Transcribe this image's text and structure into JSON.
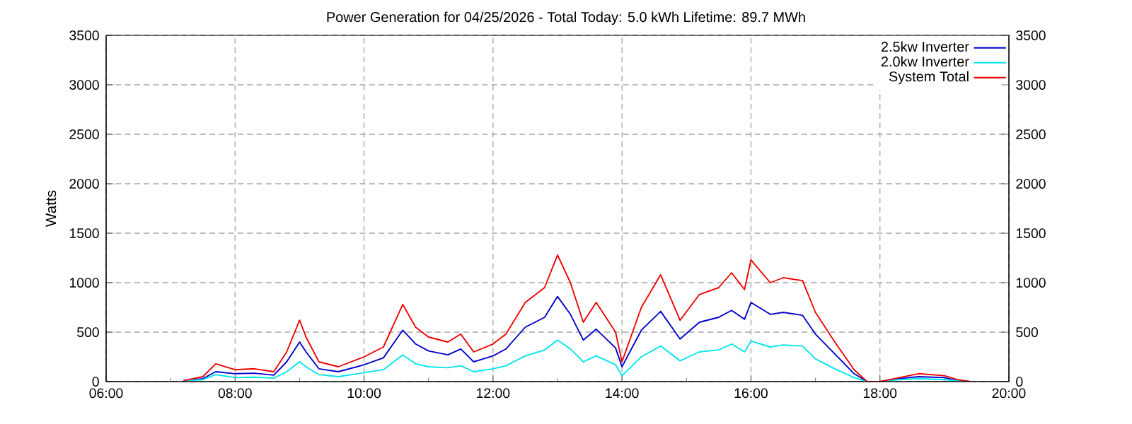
{
  "chart_data": {
    "type": "line",
    "title": "Power Generation for 04/25/2026 - Total Today: 5.0 kWh   Lifetime: 89.7 MWh",
    "ylabel": "Watts",
    "x": [
      7.2,
      7.5,
      7.7,
      8.0,
      8.3,
      8.6,
      8.8,
      9.0,
      9.1,
      9.3,
      9.6,
      10.0,
      10.3,
      10.6,
      10.8,
      11.0,
      11.3,
      11.5,
      11.7,
      12.0,
      12.2,
      12.5,
      12.8,
      13.0,
      13.2,
      13.4,
      13.6,
      13.9,
      14.0,
      14.3,
      14.6,
      14.9,
      15.2,
      15.5,
      15.7,
      15.9,
      16.0,
      16.3,
      16.5,
      16.8,
      17.0,
      17.3,
      17.6,
      17.8,
      18.0,
      18.3,
      18.6,
      19.0,
      19.2,
      19.4
    ],
    "series": [
      {
        "name": "2.5kw Inverter",
        "color": "#0000cc",
        "values": [
          10,
          30,
          100,
          80,
          85,
          65,
          200,
          400,
          300,
          130,
          100,
          170,
          240,
          520,
          380,
          310,
          270,
          330,
          200,
          260,
          330,
          550,
          650,
          860,
          680,
          420,
          530,
          340,
          150,
          520,
          710,
          430,
          600,
          650,
          720,
          630,
          800,
          680,
          700,
          670,
          480,
          280,
          80,
          0,
          0,
          30,
          50,
          40,
          10,
          0
        ]
      },
      {
        "name": "2.0kw Inverter",
        "color": "#00e5ee",
        "values": [
          10,
          20,
          70,
          40,
          45,
          35,
          100,
          200,
          150,
          70,
          50,
          90,
          120,
          270,
          180,
          150,
          140,
          160,
          100,
          130,
          160,
          260,
          320,
          420,
          330,
          200,
          260,
          170,
          60,
          250,
          360,
          210,
          300,
          320,
          380,
          300,
          410,
          350,
          370,
          360,
          230,
          130,
          40,
          0,
          0,
          20,
          30,
          20,
          10,
          0
        ]
      },
      {
        "name": "System Total",
        "color": "#ee0000",
        "values": [
          10,
          50,
          180,
          120,
          130,
          100,
          300,
          620,
          450,
          200,
          150,
          250,
          350,
          780,
          550,
          450,
          400,
          480,
          300,
          380,
          480,
          800,
          950,
          1280,
          1000,
          600,
          800,
          500,
          200,
          750,
          1080,
          620,
          880,
          950,
          1100,
          930,
          1230,
          1000,
          1050,
          1020,
          700,
          400,
          120,
          0,
          0,
          40,
          80,
          60,
          20,
          0
        ]
      }
    ],
    "xlim": [
      6,
      20
    ],
    "xticks": [
      {
        "value": 6,
        "label": "06:00"
      },
      {
        "value": 7,
        "label": null
      },
      {
        "value": 8,
        "label": "08:00"
      },
      {
        "value": 9,
        "label": null
      },
      {
        "value": 10,
        "label": "10:00"
      },
      {
        "value": 11,
        "label": null
      },
      {
        "value": 12,
        "label": "12:00"
      },
      {
        "value": 13,
        "label": null
      },
      {
        "value": 14,
        "label": "14:00"
      },
      {
        "value": 15,
        "label": null
      },
      {
        "value": 16,
        "label": "16:00"
      },
      {
        "value": 17,
        "label": null
      },
      {
        "value": 18,
        "label": "18:00"
      },
      {
        "value": 19,
        "label": null
      },
      {
        "value": 20,
        "label": "20:00"
      }
    ],
    "ylim": [
      0,
      3500
    ],
    "yticks": [
      0,
      500,
      1000,
      1500,
      2000,
      2500,
      3000,
      3500
    ],
    "y2lim": [
      0,
      3500
    ],
    "y2ticks": [
      0,
      500,
      1000,
      1500,
      2000,
      2500,
      3000,
      3500
    ],
    "grid": true,
    "legend": "top right",
    "marker": "none",
    "line_style": "solid"
  }
}
